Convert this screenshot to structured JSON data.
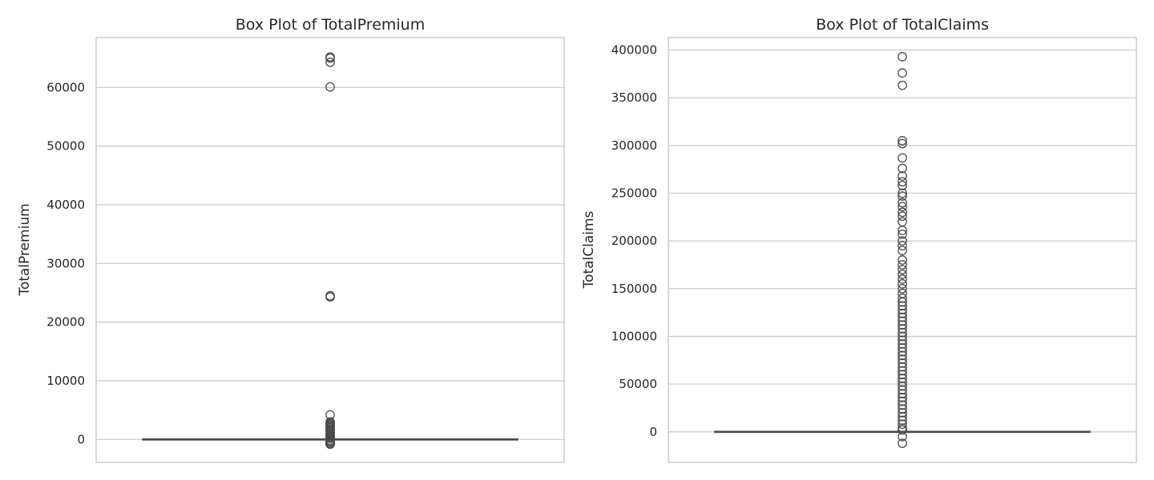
{
  "chart_data": [
    {
      "type": "box",
      "title": "Box Plot of TotalPremium",
      "xlabel": "",
      "ylabel": "TotalPremium",
      "ylim": [
        -3900,
        68500
      ],
      "yticks": [
        0,
        10000,
        20000,
        30000,
        40000,
        50000,
        60000
      ],
      "ytick_labels": [
        "0",
        "10000",
        "20000",
        "30000",
        "40000",
        "50000",
        "60000"
      ],
      "grid": true,
      "box": {
        "whisker_low": 0,
        "q1": 0,
        "median": 2,
        "q3": 22,
        "whisker_high": 55
      },
      "outliers": [
        65200,
        65000,
        64300,
        60100,
        24500,
        24300,
        4200,
        3000,
        2800,
        2600,
        2400,
        2200,
        2000,
        1800,
        1600,
        1400,
        1200,
        1000,
        800,
        600,
        400,
        200,
        -100,
        -300,
        -500,
        -700,
        -800
      ]
    },
    {
      "type": "box",
      "title": "Box Plot of TotalClaims",
      "xlabel": "",
      "ylabel": "TotalClaims",
      "ylim": [
        -32000,
        413000
      ],
      "yticks": [
        0,
        50000,
        100000,
        150000,
        200000,
        250000,
        300000,
        350000,
        400000
      ],
      "ytick_labels": [
        "0",
        "50000",
        "100000",
        "150000",
        "200000",
        "250000",
        "300000",
        "350000",
        "400000"
      ],
      "grid": true,
      "box": {
        "whisker_low": 0,
        "q1": 0,
        "median": 0,
        "q3": 0,
        "whisker_high": 0
      },
      "outliers": [
        393000,
        376000,
        363000,
        305000,
        302000,
        287000,
        276000,
        268000,
        262000,
        258000,
        250000,
        247000,
        240000,
        236000,
        230000,
        226000,
        220000,
        211000,
        207000,
        200000,
        195000,
        190000,
        180000,
        175000,
        170000,
        165000,
        160000,
        155000,
        150000,
        145000,
        140000,
        136000,
        132000,
        128000,
        124000,
        120000,
        116000,
        112000,
        108000,
        104000,
        100000,
        96000,
        92000,
        88000,
        84000,
        80000,
        76000,
        72000,
        68000,
        64000,
        60000,
        56000,
        52000,
        48000,
        44000,
        40000,
        36000,
        32000,
        28000,
        24000,
        20000,
        16000,
        12000,
        8000,
        4000,
        2000,
        -5000,
        -12000
      ]
    }
  ]
}
